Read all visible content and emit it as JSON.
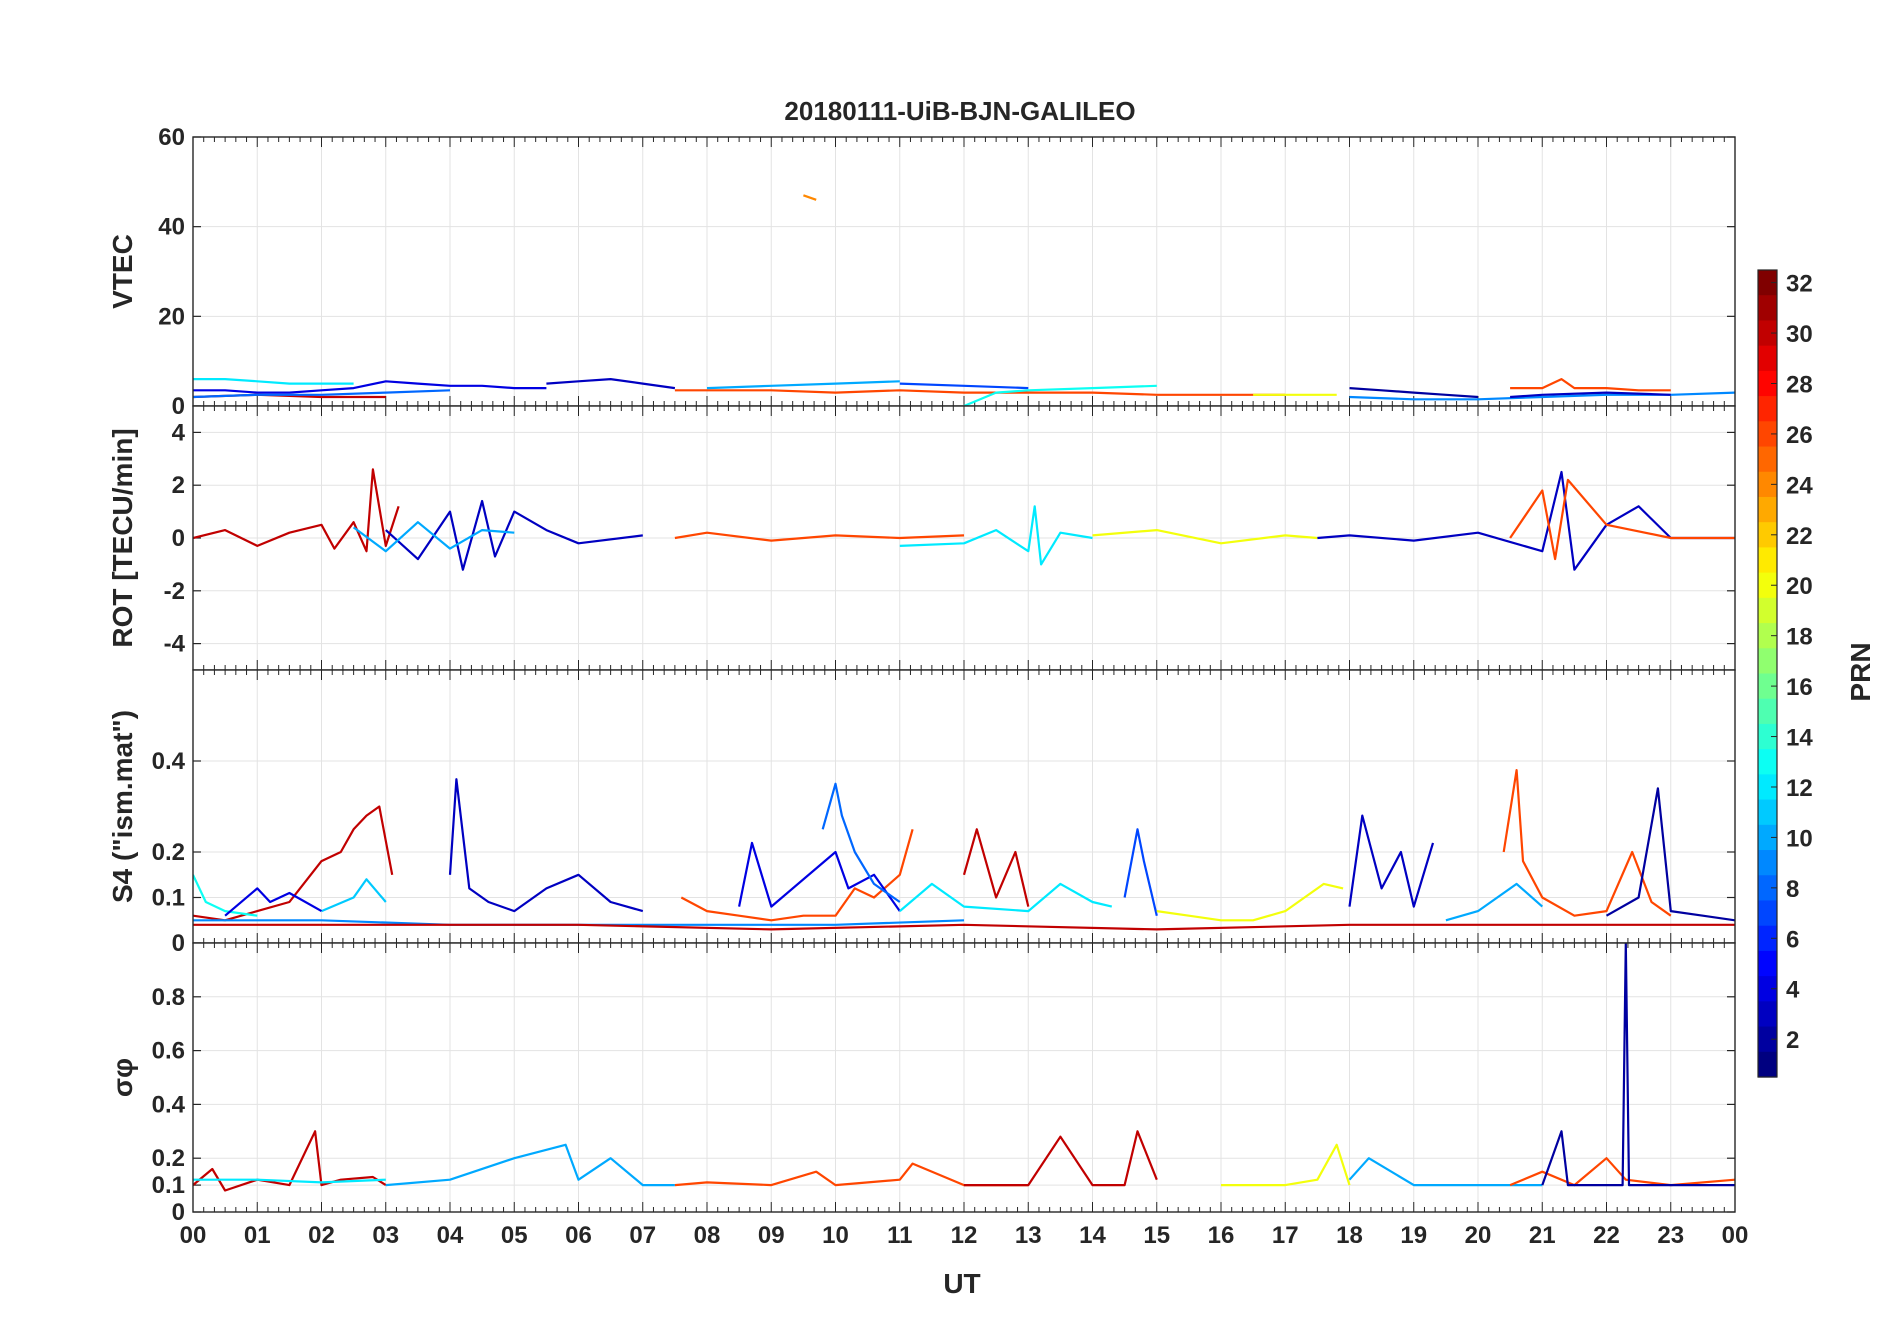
{
  "chart_data": [
    {
      "type": "line",
      "title": "20180111-UiB-BJN-GALILEO",
      "ylabel": "VTEC",
      "ylim": [
        0,
        60
      ],
      "yticks": [
        "0",
        "20",
        "40",
        "60"
      ],
      "series": [
        {
          "color_prn": 4,
          "x": [
            0,
            0.5,
            1,
            1.5,
            2,
            2.5,
            3,
            3.5,
            4,
            4.5,
            5,
            5.5
          ],
          "y": [
            3.5,
            3.5,
            3,
            3,
            3.5,
            4,
            5.5,
            5,
            4.5,
            4.5,
            4,
            4
          ]
        },
        {
          "color_prn": 12,
          "x": [
            0,
            0.5,
            1,
            1.5,
            2,
            2.5
          ],
          "y": [
            6,
            6,
            5.5,
            5,
            5,
            5
          ]
        },
        {
          "color_prn": 30,
          "x": [
            0,
            1,
            2,
            3
          ],
          "y": [
            2,
            2.5,
            2,
            2
          ]
        },
        {
          "color_prn": 8,
          "x": [
            0,
            1,
            2,
            3,
            4
          ],
          "y": [
            2,
            2.5,
            2.5,
            3,
            3.5
          ]
        },
        {
          "color_prn": 3,
          "x": [
            5.5,
            6,
            6.5,
            7,
            7.5
          ],
          "y": [
            5,
            5.5,
            6,
            5,
            4
          ]
        },
        {
          "color_prn": 24,
          "x": [
            9.5,
            9.7
          ],
          "y": [
            47,
            46
          ]
        },
        {
          "color_prn": 26,
          "x": [
            7.5,
            8,
            9,
            10,
            11,
            12,
            13,
            14,
            15,
            16,
            17
          ],
          "y": [
            3.5,
            3.5,
            3.5,
            3,
            3.5,
            3,
            3,
            3,
            2.5,
            2.5,
            2.5
          ]
        },
        {
          "color_prn": 10,
          "x": [
            8,
            9,
            10,
            11
          ],
          "y": [
            4,
            4.5,
            5,
            5.5
          ]
        },
        {
          "color_prn": 7,
          "x": [
            11,
            12,
            13
          ],
          "y": [
            5,
            4.5,
            4
          ]
        },
        {
          "color_prn": 13,
          "x": [
            12,
            12.5,
            13,
            14,
            15
          ],
          "y": [
            0,
            3,
            3.5,
            4,
            4.5
          ]
        },
        {
          "color_prn": 20,
          "x": [
            16.5,
            17,
            17.8
          ],
          "y": [
            2.5,
            2.5,
            2.5
          ]
        },
        {
          "color_prn": 2,
          "x": [
            18,
            18.5,
            19,
            19.5,
            20
          ],
          "y": [
            4,
            3.5,
            3,
            2.5,
            2
          ]
        },
        {
          "color_prn": 9,
          "x": [
            18,
            19,
            20,
            21,
            22,
            23,
            24
          ],
          "y": [
            2,
            1.5,
            1.5,
            2,
            2.5,
            2.5,
            3
          ]
        },
        {
          "color_prn": 26,
          "x": [
            20.5,
            21,
            21.3,
            21.5,
            22,
            22.5,
            23
          ],
          "y": [
            4,
            4,
            6,
            4,
            4,
            3.5,
            3.5
          ]
        },
        {
          "color_prn": 3,
          "x": [
            20.5,
            21,
            22,
            23
          ],
          "y": [
            2,
            2.5,
            3,
            2.5
          ]
        }
      ]
    },
    {
      "type": "line",
      "ylabel": "ROT [TECU/min]",
      "ylim": [
        -5,
        5
      ],
      "yticks": [
        "-4",
        "-2",
        "0",
        "2",
        "4"
      ],
      "series": [
        {
          "color_prn": 30,
          "x": [
            0,
            0.5,
            1,
            1.5,
            2,
            2.2,
            2.5,
            2.7,
            2.8,
            3,
            3.2
          ],
          "y": [
            0,
            0.3,
            -0.3,
            0.2,
            0.5,
            -0.4,
            0.6,
            -0.5,
            2.6,
            -0.3,
            1.2
          ]
        },
        {
          "color_prn": 3,
          "x": [
            3,
            3.5,
            4,
            4.2,
            4.5,
            4.7,
            5,
            5.5,
            6,
            7
          ],
          "y": [
            0.3,
            -0.8,
            1,
            -1.2,
            1.4,
            -0.7,
            1,
            0.3,
            -0.2,
            0.1
          ]
        },
        {
          "color_prn": 10,
          "x": [
            2.5,
            3,
            3.5,
            4,
            4.5,
            5
          ],
          "y": [
            0.4,
            -0.5,
            0.6,
            -0.4,
            0.3,
            0.2
          ]
        },
        {
          "color_prn": 26,
          "x": [
            7.5,
            8,
            9,
            10,
            11,
            12
          ],
          "y": [
            0,
            0.2,
            -0.1,
            0.1,
            0,
            0.1
          ]
        },
        {
          "color_prn": 12,
          "x": [
            11,
            12,
            12.5,
            13,
            13.1,
            13.2,
            13.5,
            14
          ],
          "y": [
            -0.3,
            -0.2,
            0.3,
            -0.5,
            1.2,
            -1,
            0.2,
            0
          ]
        },
        {
          "color_prn": 20,
          "x": [
            14,
            15,
            16,
            17,
            17.5
          ],
          "y": [
            0.1,
            0.3,
            -0.2,
            0.1,
            0
          ]
        },
        {
          "color_prn": 3,
          "x": [
            17.5,
            18,
            19,
            20,
            21,
            21.3,
            21.5,
            22,
            22.5,
            23,
            24
          ],
          "y": [
            0,
            0.1,
            -0.1,
            0.2,
            -0.5,
            2.5,
            -1.2,
            0.5,
            1.2,
            0,
            0
          ]
        },
        {
          "color_prn": 26,
          "x": [
            20.5,
            21,
            21.2,
            21.4,
            22,
            23,
            24
          ],
          "y": [
            0,
            1.8,
            -0.8,
            2.2,
            0.5,
            0,
            0
          ]
        }
      ]
    },
    {
      "type": "line",
      "ylabel": "S4 (\"ism.mat\")",
      "ylim": [
        0,
        0.6
      ],
      "yticks": [
        "0",
        "0.1",
        "0.2",
        "0.4"
      ],
      "series": [
        {
          "color_prn": 30,
          "x": [
            0,
            0.5,
            1,
            1.5,
            2,
            2.3,
            2.5,
            2.7,
            2.9,
            3.1
          ],
          "y": [
            0.06,
            0.05,
            0.07,
            0.09,
            0.18,
            0.2,
            0.25,
            0.28,
            0.3,
            0.15
          ]
        },
        {
          "color_prn": 13,
          "x": [
            0,
            0.2,
            0.5,
            1
          ],
          "y": [
            0.15,
            0.09,
            0.07,
            0.06
          ]
        },
        {
          "color_prn": 11,
          "x": [
            2,
            2.5,
            2.7,
            3
          ],
          "y": [
            0.07,
            0.1,
            0.14,
            0.09
          ]
        },
        {
          "color_prn": 4,
          "x": [
            0.5,
            1,
            1.2,
            1.5,
            2
          ],
          "y": [
            0.06,
            0.12,
            0.09,
            0.11,
            0.07
          ]
        },
        {
          "color_prn": 3,
          "x": [
            4,
            4.1,
            4.3,
            4.6,
            5,
            5.5,
            6,
            6.5,
            7
          ],
          "y": [
            0.15,
            0.36,
            0.12,
            0.09,
            0.07,
            0.12,
            0.15,
            0.09,
            0.07
          ]
        },
        {
          "color_prn": 9,
          "x": [
            0,
            2,
            4,
            6,
            8,
            10,
            12
          ],
          "y": [
            0.05,
            0.05,
            0.04,
            0.04,
            0.04,
            0.04,
            0.05
          ]
        },
        {
          "color_prn": 26,
          "x": [
            7.6,
            8,
            8.5,
            9,
            9.5,
            10,
            10.3,
            10.6,
            11,
            11.2
          ],
          "y": [
            0.1,
            0.07,
            0.06,
            0.05,
            0.06,
            0.06,
            0.12,
            0.1,
            0.15,
            0.25
          ]
        },
        {
          "color_prn": 4,
          "x": [
            8.5,
            8.7,
            9,
            10,
            10.2,
            10.6,
            11
          ],
          "y": [
            0.08,
            0.22,
            0.08,
            0.2,
            0.12,
            0.15,
            0.07
          ]
        },
        {
          "color_prn": 8,
          "x": [
            9.8,
            10,
            10.1,
            10.3,
            10.6,
            11
          ],
          "y": [
            0.25,
            0.35,
            0.28,
            0.2,
            0.13,
            0.09
          ]
        },
        {
          "color_prn": 12,
          "x": [
            11,
            11.5,
            12,
            13,
            13.5,
            14,
            14.3
          ],
          "y": [
            0.07,
            0.13,
            0.08,
            0.07,
            0.13,
            0.09,
            0.08
          ]
        },
        {
          "color_prn": 30,
          "x": [
            12,
            12.2,
            12.5,
            12.8,
            13
          ],
          "y": [
            0.15,
            0.25,
            0.1,
            0.2,
            0.08
          ]
        },
        {
          "color_prn": 7,
          "x": [
            14.5,
            14.7,
            14.8,
            15
          ],
          "y": [
            0.1,
            0.25,
            0.18,
            0.06
          ]
        },
        {
          "color_prn": 20,
          "x": [
            15,
            15.5,
            16,
            16.5,
            17,
            17.3,
            17.6,
            17.9
          ],
          "y": [
            0.07,
            0.06,
            0.05,
            0.05,
            0.07,
            0.1,
            0.13,
            0.12
          ]
        },
        {
          "color_prn": 3,
          "x": [
            18,
            18.2,
            18.5,
            18.8,
            19,
            19.3
          ],
          "y": [
            0.08,
            0.28,
            0.12,
            0.2,
            0.08,
            0.22
          ]
        },
        {
          "color_prn": 10,
          "x": [
            19.5,
            20,
            20.3,
            20.6,
            21
          ],
          "y": [
            0.05,
            0.07,
            0.1,
            0.13,
            0.08
          ]
        },
        {
          "color_prn": 26,
          "x": [
            20.4,
            20.6,
            20.7,
            21,
            21.5,
            22,
            22.4,
            22.7,
            23
          ],
          "y": [
            0.2,
            0.38,
            0.18,
            0.1,
            0.06,
            0.07,
            0.2,
            0.09,
            0.06
          ]
        },
        {
          "color_prn": 2,
          "x": [
            22,
            22.5,
            22.8,
            23,
            23.5,
            24
          ],
          "y": [
            0.06,
            0.1,
            0.34,
            0.07,
            0.06,
            0.05
          ]
        },
        {
          "color_prn": 30,
          "x": [
            0,
            3,
            6,
            9,
            12,
            15,
            18,
            21,
            24
          ],
          "y": [
            0.04,
            0.04,
            0.04,
            0.03,
            0.04,
            0.03,
            0.04,
            0.04,
            0.04
          ]
        }
      ]
    },
    {
      "type": "line",
      "ylabel": "σφ",
      "ylim": [
        0,
        1
      ],
      "yticks": [
        "0",
        "0.1",
        "0.2",
        "0.4",
        "0.6",
        "0.8"
      ],
      "series": [
        {
          "color_prn": 30,
          "x": [
            0,
            0.3,
            0.5,
            1,
            1.5,
            1.9,
            2,
            2.3,
            2.8,
            3
          ],
          "y": [
            0.1,
            0.16,
            0.08,
            0.12,
            0.1,
            0.3,
            0.1,
            0.12,
            0.13,
            0.1
          ]
        },
        {
          "color_prn": 12,
          "x": [
            0,
            1,
            2,
            3
          ],
          "y": [
            0.12,
            0.12,
            0.11,
            0.12
          ]
        },
        {
          "color_prn": 10,
          "x": [
            3,
            4,
            5,
            5.8,
            6,
            6.5,
            7,
            7.5
          ],
          "y": [
            0.1,
            0.12,
            0.2,
            0.25,
            0.12,
            0.2,
            0.1,
            0.1
          ]
        },
        {
          "color_prn": 26,
          "x": [
            7.5,
            8,
            9,
            9.7,
            10,
            11,
            11.2,
            12,
            13
          ],
          "y": [
            0.1,
            0.11,
            0.1,
            0.15,
            0.1,
            0.12,
            0.18,
            0.1,
            0.1
          ]
        },
        {
          "color_prn": 30,
          "x": [
            12,
            13,
            13.5,
            14,
            14.5,
            14.7,
            15
          ],
          "y": [
            0.1,
            0.1,
            0.28,
            0.1,
            0.1,
            0.3,
            0.12
          ]
        },
        {
          "color_prn": 20,
          "x": [
            16,
            17,
            17.5,
            17.8,
            18
          ],
          "y": [
            0.1,
            0.1,
            0.12,
            0.25,
            0.1
          ]
        },
        {
          "color_prn": 10,
          "x": [
            18,
            18.3,
            19,
            20,
            21
          ],
          "y": [
            0.12,
            0.2,
            0.1,
            0.1,
            0.1
          ]
        },
        {
          "color_prn": 26,
          "x": [
            20.5,
            21,
            21.5,
            22,
            22.3,
            23,
            24
          ],
          "y": [
            0.1,
            0.15,
            0.1,
            0.2,
            0.12,
            0.1,
            0.12
          ]
        },
        {
          "color_prn": 2,
          "x": [
            21,
            21.3,
            21.4,
            22,
            22.25,
            22.3,
            22.35,
            22.5,
            23,
            24
          ],
          "y": [
            0.1,
            0.3,
            0.1,
            0.1,
            0.1,
            1,
            0.1,
            0.1,
            0.1,
            0.1
          ]
        }
      ]
    }
  ],
  "xaxis": {
    "xlabel": "UT",
    "xlim": [
      0,
      24
    ],
    "ticks": [
      "00",
      "01",
      "02",
      "03",
      "04",
      "05",
      "06",
      "07",
      "08",
      "09",
      "10",
      "11",
      "12",
      "13",
      "14",
      "15",
      "16",
      "17",
      "18",
      "19",
      "20",
      "21",
      "22",
      "23",
      "00"
    ]
  },
  "colorbar": {
    "label": "PRN",
    "range": [
      1,
      32
    ],
    "ticks": [
      "2",
      "4",
      "6",
      "8",
      "10",
      "12",
      "14",
      "16",
      "18",
      "20",
      "22",
      "24",
      "26",
      "28",
      "30",
      "32"
    ],
    "colormap": "jet"
  }
}
